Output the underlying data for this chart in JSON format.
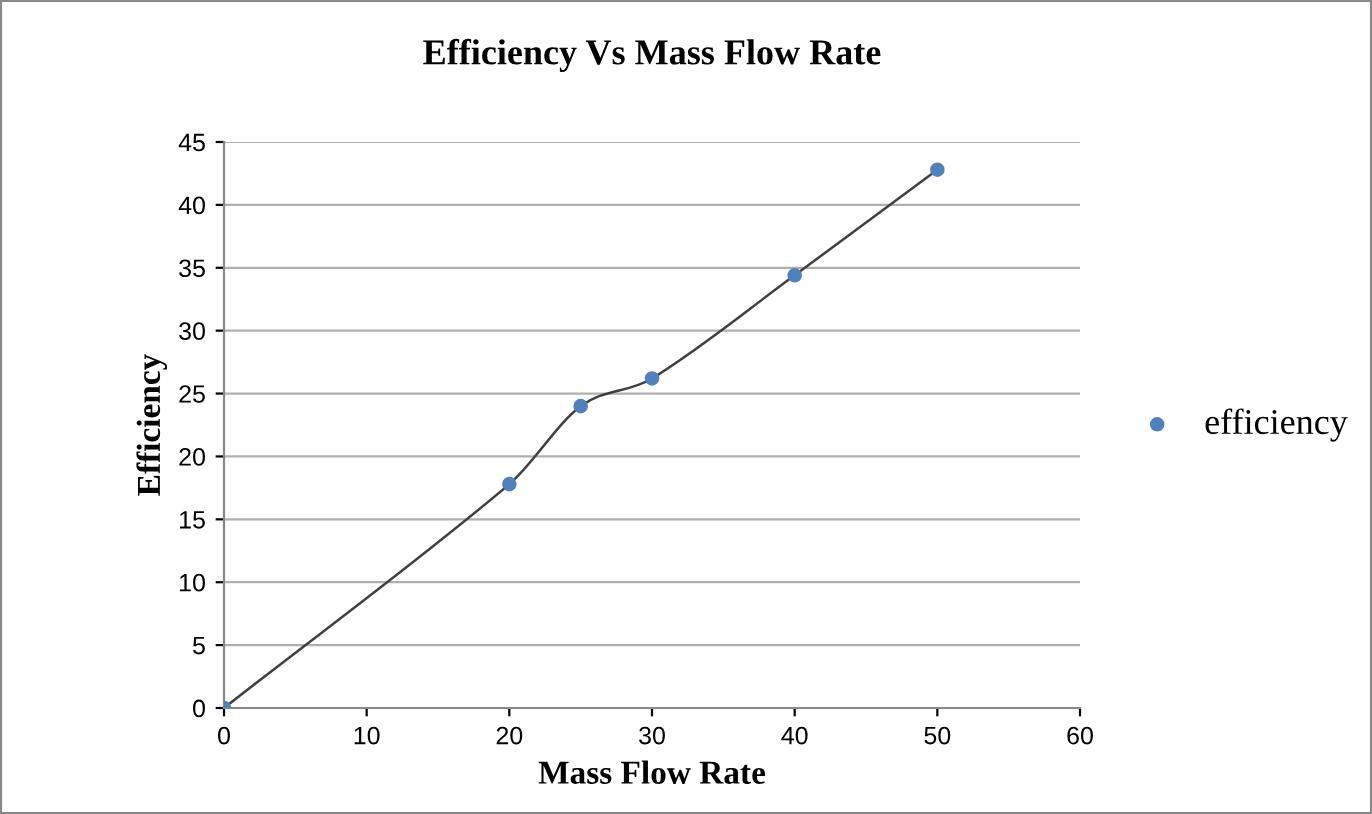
{
  "chart_data": {
    "type": "scatter",
    "title": "Efficiency Vs Mass Flow Rate",
    "xlabel": "Mass Flow Rate",
    "ylabel": "Efficiency",
    "series": [
      {
        "name": "efficiency",
        "color": "#4f81bd",
        "x": [
          0,
          20,
          25,
          30,
          40,
          50
        ],
        "values": [
          0,
          17.8,
          24,
          26.2,
          34.4,
          42.8
        ],
        "marker": "circle"
      },
      {
        "type": "line",
        "color": "#404040",
        "x": [
          0,
          20,
          25,
          30,
          40,
          50
        ],
        "values": [
          0,
          17.8,
          24,
          26.2,
          34.4,
          42.8
        ],
        "marker": "none",
        "line_style": "solid"
      }
    ],
    "xlim": [
      0,
      60
    ],
    "xticks": [
      0,
      10,
      20,
      30,
      40,
      50,
      60
    ],
    "ylim": [
      0,
      45
    ],
    "yticks": [
      0,
      5,
      10,
      15,
      20,
      25,
      30,
      35,
      40,
      45
    ],
    "grid": "y",
    "legend": "right"
  }
}
